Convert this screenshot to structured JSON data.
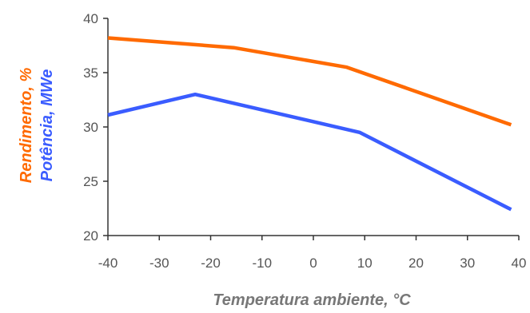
{
  "chart_data": {
    "type": "line",
    "xlabel": "Temperatura ambiente, °C",
    "ylabels": [
      {
        "text": "Rendimento, %",
        "color": "#ff6a00"
      },
      {
        "text": "Potência, MWe",
        "color": "#3a5cff"
      }
    ],
    "xlim": [
      -40,
      40
    ],
    "ylim": [
      20,
      40
    ],
    "x_ticks": [
      -40,
      -30,
      -20,
      -10,
      0,
      10,
      20,
      30,
      40
    ],
    "y_ticks": [
      20,
      25,
      30,
      35,
      40
    ],
    "grid": false,
    "legend": "none",
    "series": [
      {
        "color": "#ff6a00",
        "x": [
          -40,
          -15.5,
          6.5,
          38.5
        ],
        "y": [
          38.2,
          37.3,
          35.5,
          30.2
        ]
      },
      {
        "color": "#3a5cff",
        "x": [
          -40,
          -23,
          9,
          38.5
        ],
        "y": [
          31.1,
          33,
          29.5,
          22.4
        ]
      }
    ]
  }
}
